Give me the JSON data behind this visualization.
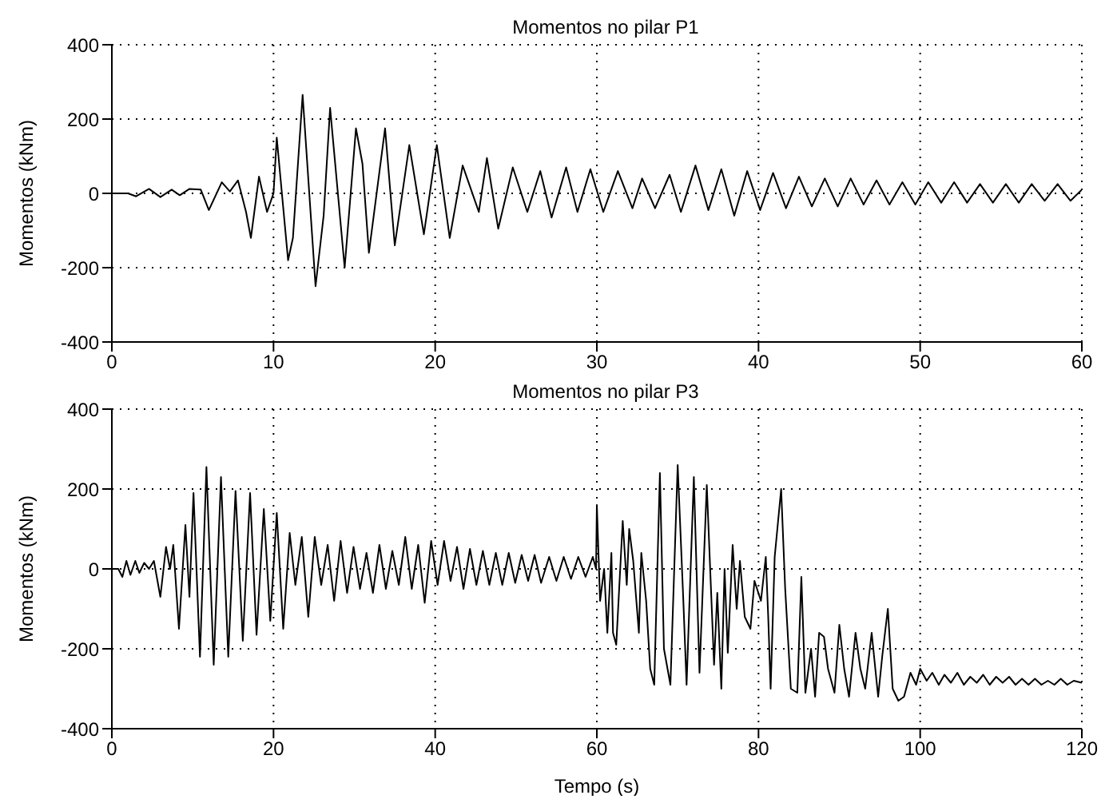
{
  "chart_data": [
    {
      "type": "line",
      "title": "Momentos no pilar P1",
      "ylabel": "Momentos (kNm)",
      "xlim": [
        0,
        60
      ],
      "xticks": [
        0,
        10,
        20,
        30,
        40,
        50,
        60
      ],
      "ylim": [
        -400,
        400
      ],
      "yticks": [
        -400,
        -200,
        0,
        200,
        400
      ],
      "grid": true,
      "line_style": "solid",
      "marker": "none",
      "series": [
        {
          "color": "#000000",
          "x": [
            0,
            1,
            1.5,
            2.3,
            3,
            3.7,
            4.2,
            4.8,
            5.5,
            6,
            6.8,
            7.3,
            7.8,
            8.3,
            8.6,
            9.1,
            9.6,
            10,
            10.2,
            10.9,
            11.2,
            11.8,
            12.6,
            13.1,
            13.5,
            14.4,
            15.1,
            15.5,
            15.9,
            16.9,
            17.5,
            18.4,
            19.3,
            20.1,
            20.9,
            21.7,
            22.7,
            23.2,
            23.9,
            24.8,
            25.7,
            26.5,
            27.2,
            28.1,
            28.8,
            29.6,
            30.4,
            31.3,
            32.2,
            32.8,
            33.6,
            34.5,
            35.2,
            36.1,
            36.9,
            37.7,
            38.5,
            39.3,
            40.1,
            40.9,
            41.7,
            42.5,
            43.3,
            44.1,
            44.9,
            45.7,
            46.5,
            47.3,
            48.1,
            48.9,
            49.7,
            50.5,
            51.3,
            52.1,
            52.9,
            53.7,
            54.5,
            55.3,
            56.1,
            56.9,
            57.7,
            58.5,
            59.3,
            60
          ],
          "values": [
            0,
            0,
            -8,
            12,
            -10,
            10,
            -5,
            12,
            10,
            -45,
            30,
            5,
            35,
            -50,
            -120,
            45,
            -50,
            0,
            150,
            -180,
            -120,
            265,
            -250,
            -60,
            230,
            -200,
            175,
            80,
            -160,
            175,
            -140,
            130,
            -110,
            130,
            -120,
            75,
            -50,
            95,
            -95,
            70,
            -50,
            60,
            -65,
            70,
            -50,
            65,
            -50,
            60,
            -40,
            40,
            -40,
            50,
            -50,
            75,
            -45,
            65,
            -60,
            60,
            -45,
            55,
            -40,
            45,
            -35,
            40,
            -35,
            40,
            -30,
            35,
            -30,
            30,
            -30,
            30,
            -25,
            30,
            -25,
            25,
            -25,
            25,
            -25,
            25,
            -20,
            25,
            -20,
            10
          ]
        }
      ]
    },
    {
      "type": "line",
      "title": "Momentos no pilar P3",
      "xlabel": "Tempo (s)",
      "ylabel": "Momentos (kNm)",
      "xlim": [
        0,
        120
      ],
      "xticks": [
        0,
        20,
        40,
        60,
        80,
        100,
        120
      ],
      "ylim": [
        -400,
        400
      ],
      "yticks": [
        -400,
        -200,
        0,
        200,
        400
      ],
      "grid": true,
      "line_style": "solid",
      "marker": "none",
      "series": [
        {
          "color": "#000000",
          "x": [
            0,
            0.8,
            1.3,
            1.8,
            2.3,
            2.9,
            3.4,
            4,
            4.6,
            5.2,
            6,
            6.7,
            7.2,
            7.6,
            8.3,
            9.1,
            9.6,
            10.1,
            10.9,
            11.7,
            12.6,
            13.5,
            14.4,
            15.3,
            16.2,
            17.1,
            17.9,
            18.8,
            19.6,
            20.4,
            21.2,
            22,
            22.7,
            23.5,
            24.3,
            25.1,
            25.9,
            26.7,
            27.5,
            28.3,
            29.1,
            29.9,
            30.7,
            31.5,
            32.3,
            33.1,
            33.9,
            34.7,
            35.5,
            36.3,
            37.1,
            37.9,
            38.7,
            39.5,
            40.3,
            41.1,
            41.9,
            42.7,
            43.5,
            44.3,
            45.1,
            45.9,
            46.7,
            47.5,
            48.3,
            49.1,
            49.9,
            50.7,
            51.5,
            52.3,
            53.1,
            54.1,
            55,
            55.9,
            56.8,
            57.7,
            58.6,
            59.5,
            59.9,
            60,
            60.4,
            60.9,
            61.3,
            61.8,
            62,
            62.4,
            63.2,
            63.7,
            64,
            64.5,
            65.2,
            65.5,
            66.1,
            66.6,
            67.1,
            67.8,
            68.3,
            69.1,
            70,
            70.7,
            71.1,
            72,
            72.7,
            73.6,
            74.5,
            74.9,
            75.4,
            75.8,
            76.2,
            76.8,
            77.3,
            77.7,
            78.3,
            79,
            79.5,
            80.3,
            80.9,
            81.2,
            81.5,
            82,
            82.8,
            83.3,
            84,
            84.8,
            85.3,
            85.8,
            86.5,
            87,
            87.5,
            88.1,
            88.6,
            89.4,
            90,
            90.6,
            91.2,
            92,
            92.6,
            93.2,
            94,
            94.8,
            95.3,
            96,
            96.6,
            97.3,
            98,
            98.8,
            99.5,
            100,
            100.8,
            101.5,
            102.3,
            103,
            103.8,
            104.6,
            105.4,
            106.2,
            107,
            107.8,
            108.6,
            109.4,
            110.2,
            111,
            111.8,
            112.6,
            113.4,
            114.2,
            115,
            115.8,
            116.6,
            117.4,
            118.2,
            119,
            120
          ],
          "values": [
            0,
            0,
            -20,
            20,
            -15,
            20,
            -10,
            15,
            0,
            20,
            -70,
            55,
            0,
            60,
            -150,
            110,
            -70,
            190,
            -220,
            255,
            -240,
            230,
            -220,
            195,
            -180,
            190,
            -165,
            150,
            -130,
            140,
            -150,
            90,
            -40,
            80,
            -120,
            80,
            -40,
            60,
            -80,
            70,
            -60,
            55,
            -50,
            40,
            -60,
            60,
            -50,
            45,
            -40,
            80,
            -50,
            60,
            -85,
            70,
            -40,
            70,
            -30,
            55,
            -50,
            50,
            -40,
            45,
            -40,
            40,
            -40,
            40,
            -35,
            35,
            -30,
            35,
            -35,
            30,
            -30,
            30,
            -25,
            30,
            -20,
            30,
            0,
            160,
            -80,
            0,
            -160,
            40,
            -160,
            -190,
            120,
            -40,
            100,
            20,
            -160,
            40,
            -80,
            -250,
            -290,
            240,
            -200,
            -290,
            260,
            -80,
            -290,
            230,
            -260,
            210,
            -240,
            -60,
            -300,
            0,
            -210,
            60,
            -100,
            20,
            -120,
            -150,
            -30,
            -80,
            30,
            -120,
            -300,
            30,
            200,
            -50,
            -300,
            -310,
            -20,
            -310,
            -200,
            -320,
            -160,
            -170,
            -250,
            -310,
            -140,
            -250,
            -320,
            -160,
            -250,
            -300,
            -160,
            -320,
            -220,
            -100,
            -300,
            -330,
            -320,
            -260,
            -290,
            -250,
            -280,
            -260,
            -290,
            -265,
            -285,
            -260,
            -290,
            -270,
            -285,
            -265,
            -290,
            -270,
            -285,
            -270,
            -290,
            -275,
            -290,
            -275,
            -290,
            -280,
            -290,
            -275,
            -290,
            -280,
            -285
          ]
        }
      ]
    }
  ]
}
